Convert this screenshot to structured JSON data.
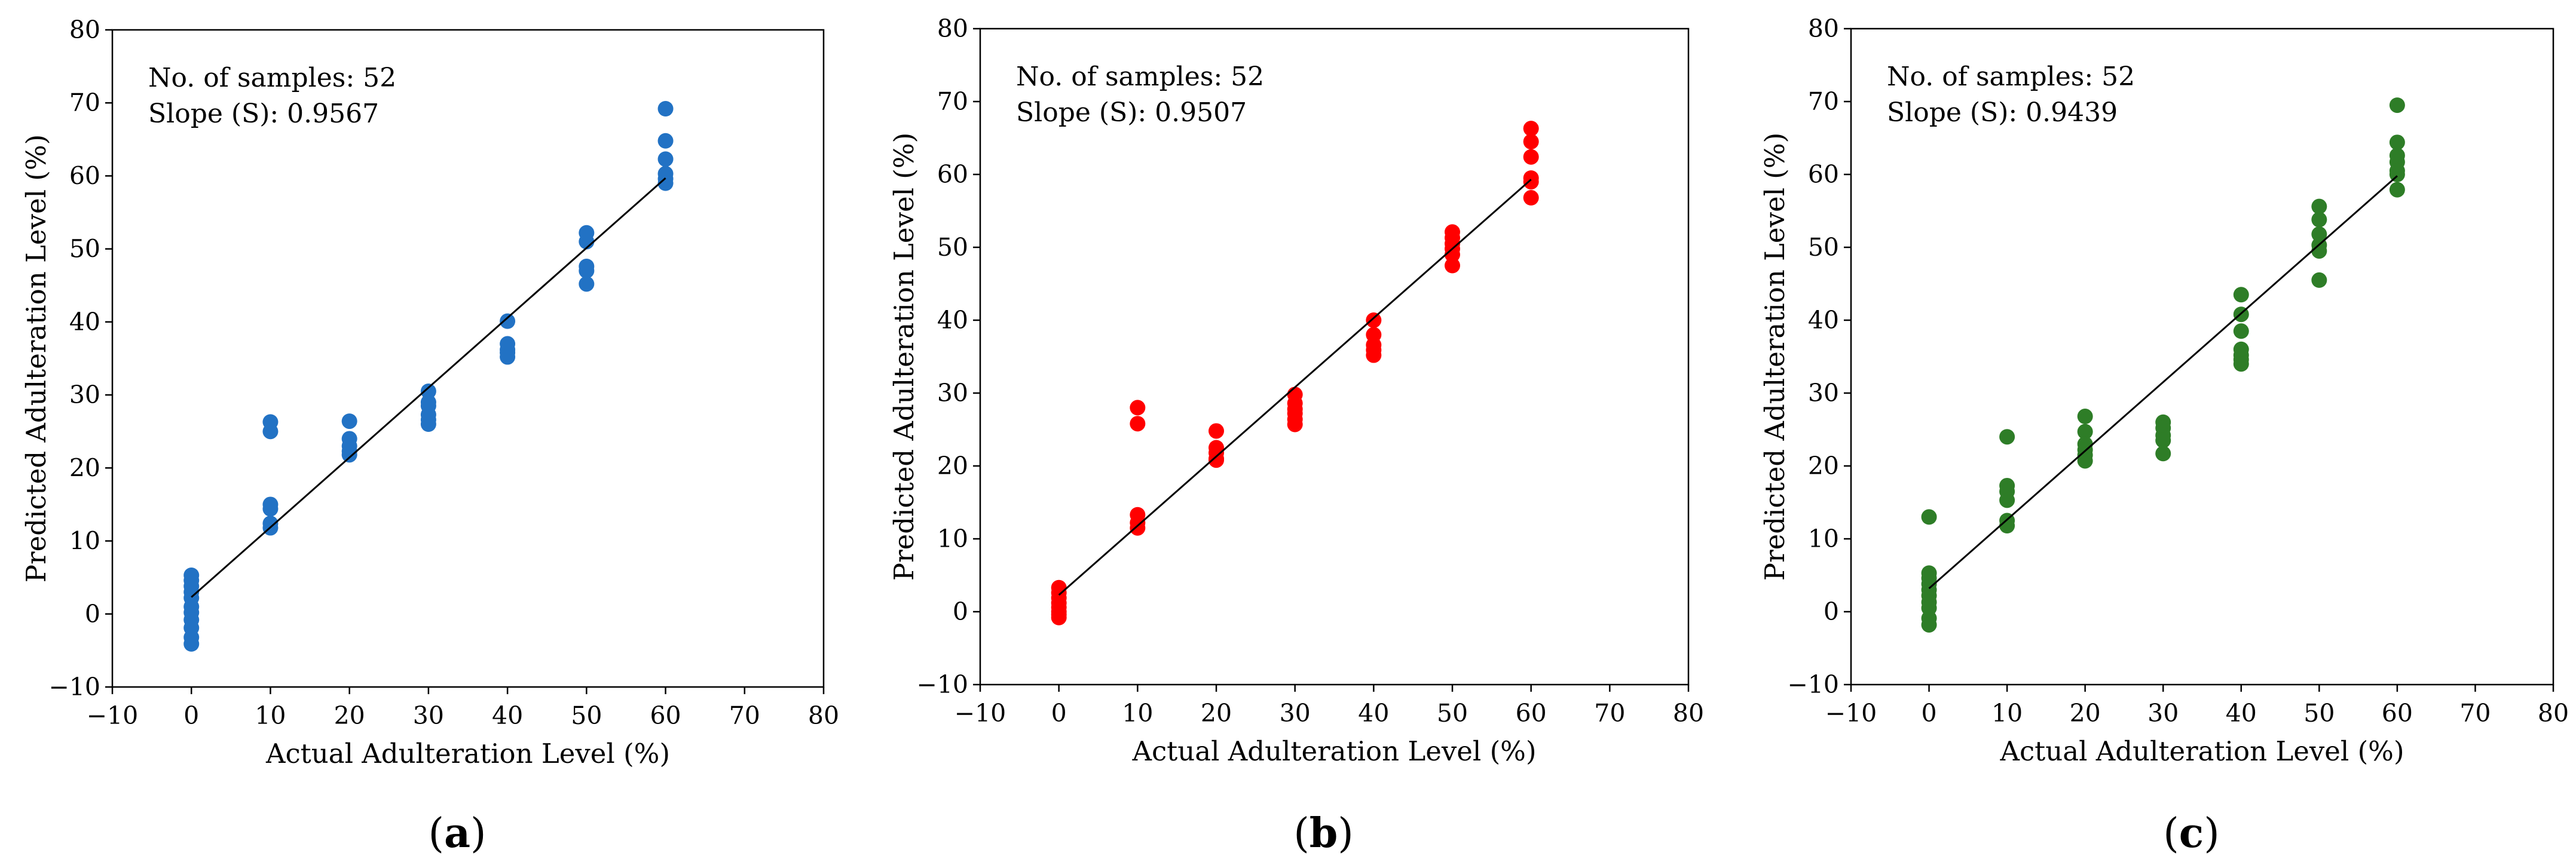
{
  "chart_data": [
    {
      "type": "scatter",
      "panel_label": "a",
      "caption_open": "(",
      "caption_close": ")",
      "color": "#2272c4",
      "xlabel": "Actual Adulteration Level (%)",
      "ylabel": "Predicted Adulteration Level (%)",
      "xlim": [
        -10,
        80
      ],
      "ylim": [
        -10,
        80
      ],
      "x_ticks": [
        -10,
        0,
        10,
        20,
        30,
        40,
        50,
        60,
        70,
        80
      ],
      "y_ticks": [
        -10,
        0,
        10,
        20,
        30,
        40,
        50,
        60,
        70,
        80
      ],
      "x_tick_labels": [
        "−10",
        "0",
        "10",
        "20",
        "30",
        "40",
        "50",
        "60",
        "70",
        "80"
      ],
      "y_tick_labels": [
        "−10",
        "0",
        "10",
        "20",
        "30",
        "40",
        "50",
        "60",
        "70",
        "80"
      ],
      "annotation_samples": "No. of samples: 52",
      "annotation_slope": "Slope (S): 0.9567",
      "fit_line": {
        "x": [
          0,
          60
        ],
        "y": [
          2.3,
          59.7
        ]
      },
      "points": {
        "x": [
          0,
          0,
          0,
          0,
          0,
          0,
          0,
          0,
          0,
          0,
          0,
          10,
          10,
          10,
          10,
          10,
          10,
          20,
          20,
          20,
          20,
          20,
          30,
          30,
          30,
          30,
          30,
          30,
          40,
          40,
          40,
          40,
          40,
          50,
          50,
          50,
          50,
          50,
          60,
          60,
          60,
          60,
          60,
          60
        ],
        "y": [
          5.3,
          4.6,
          3.8,
          3.0,
          2.2,
          1.0,
          0.2,
          -0.8,
          -1.9,
          -3.2,
          -4.1,
          26.3,
          25.0,
          15.0,
          14.4,
          12.4,
          11.8,
          26.4,
          24.0,
          23.0,
          22.3,
          21.8,
          30.5,
          28.5,
          27.3,
          26.6,
          26.0,
          29.0,
          40.1,
          37.0,
          36.2,
          35.8,
          35.2,
          52.2,
          51.0,
          47.6,
          47.0,
          45.2,
          69.2,
          64.8,
          62.3,
          60.3,
          59.6,
          59.0
        ]
      }
    },
    {
      "type": "scatter",
      "panel_label": "b",
      "caption_open": "(",
      "caption_close": ")",
      "color": "#ff0000",
      "xlabel": "Actual Adulteration Level (%)",
      "ylabel": "Predicted Adulteration Level (%)",
      "xlim": [
        -10,
        80
      ],
      "ylim": [
        -10,
        80
      ],
      "x_ticks": [
        -10,
        0,
        10,
        20,
        30,
        40,
        50,
        60,
        70,
        80
      ],
      "y_ticks": [
        -10,
        0,
        10,
        20,
        30,
        40,
        50,
        60,
        70,
        80
      ],
      "x_tick_labels": [
        "−10",
        "0",
        "10",
        "20",
        "30",
        "40",
        "50",
        "60",
        "70",
        "80"
      ],
      "y_tick_labels": [
        "−10",
        "0",
        "10",
        "20",
        "30",
        "40",
        "50",
        "60",
        "70",
        "80"
      ],
      "annotation_samples": "No. of samples: 52",
      "annotation_slope": "Slope (S): 0.9507",
      "fit_line": {
        "x": [
          0,
          60
        ],
        "y": [
          2.3,
          59.3
        ]
      },
      "points": {
        "x": [
          0,
          0,
          0,
          0,
          0,
          0,
          0,
          0,
          10,
          10,
          10,
          10,
          10,
          20,
          20,
          20,
          20,
          20,
          30,
          30,
          30,
          30,
          30,
          30,
          40,
          40,
          40,
          40,
          40,
          50,
          50,
          50,
          50,
          50,
          50,
          60,
          60,
          60,
          60,
          60,
          60
        ],
        "y": [
          3.3,
          2.6,
          1.9,
          1.2,
          0.6,
          0.0,
          -0.4,
          -0.8,
          28.0,
          25.8,
          13.3,
          12.2,
          11.5,
          24.8,
          22.5,
          21.8,
          21.0,
          20.8,
          29.8,
          28.6,
          27.2,
          26.4,
          25.7,
          27.8,
          40.0,
          38.0,
          36.6,
          35.9,
          35.2,
          52.1,
          51.3,
          50.5,
          49.8,
          49.0,
          47.5,
          66.3,
          64.5,
          62.4,
          59.5,
          59.0,
          56.8
        ]
      }
    },
    {
      "type": "scatter",
      "panel_label": "c",
      "caption_open": "(",
      "caption_close": ")",
      "color": "#2e7d27",
      "xlabel": "Actual Adulteration Level (%)",
      "ylabel": "Predicted Adulteration Level (%)",
      "xlim": [
        -10,
        80
      ],
      "ylim": [
        -10,
        80
      ],
      "x_ticks": [
        -10,
        0,
        10,
        20,
        30,
        40,
        50,
        60,
        70,
        80
      ],
      "y_ticks": [
        -10,
        0,
        10,
        20,
        30,
        40,
        50,
        60,
        70,
        80
      ],
      "x_tick_labels": [
        "−10",
        "0",
        "10",
        "20",
        "30",
        "40",
        "50",
        "60",
        "70",
        "80"
      ],
      "y_tick_labels": [
        "−10",
        "0",
        "10",
        "20",
        "30",
        "40",
        "50",
        "60",
        "70",
        "80"
      ],
      "annotation_samples": "No. of samples: 52",
      "annotation_slope": "Slope (S): 0.9439",
      "fit_line": {
        "x": [
          0,
          60
        ],
        "y": [
          3.2,
          59.8
        ]
      },
      "points": {
        "x": [
          0,
          0,
          0,
          0,
          0,
          0,
          0,
          0,
          0,
          0,
          10,
          10,
          10,
          10,
          10,
          10,
          20,
          20,
          20,
          20,
          20,
          20,
          30,
          30,
          30,
          30,
          30,
          40,
          40,
          40,
          40,
          40,
          40,
          40,
          50,
          50,
          50,
          50,
          50,
          50,
          60,
          60,
          60,
          60,
          60,
          60,
          60
        ],
        "y": [
          13.0,
          5.3,
          4.6,
          3.8,
          3.0,
          2.2,
          1.3,
          0.5,
          -0.9,
          -1.8,
          24.0,
          17.3,
          16.5,
          15.3,
          12.5,
          11.8,
          26.8,
          24.7,
          23.0,
          22.2,
          21.5,
          20.7,
          26.0,
          25.2,
          24.2,
          23.5,
          21.7,
          43.5,
          40.8,
          38.5,
          36.0,
          35.2,
          34.6,
          34.0,
          55.6,
          53.8,
          51.8,
          50.3,
          49.5,
          45.5,
          69.5,
          64.4,
          62.6,
          61.7,
          60.5,
          60.0,
          57.9
        ]
      }
    }
  ]
}
